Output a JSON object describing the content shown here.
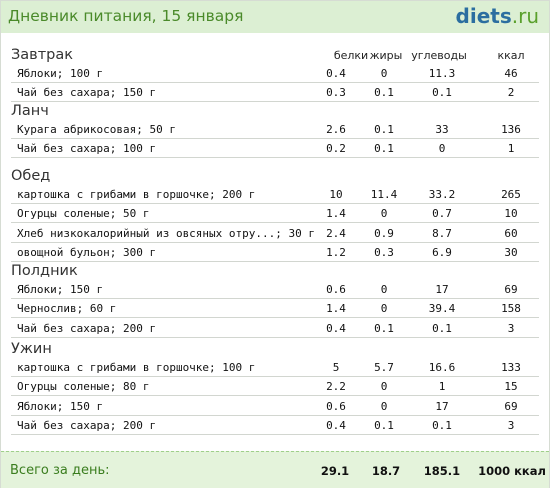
{
  "header": {
    "title": "Дневник питания, 15 января",
    "logo_main": "diets",
    "logo_tld": ".ru"
  },
  "columns": {
    "protein": "белки",
    "fat": "жиры",
    "carbs": "углеводы",
    "kcal": "ккал"
  },
  "meals": [
    {
      "title": "Завтрак",
      "items": [
        {
          "name": "Яблоки; 100 г",
          "protein": "0.4",
          "fat": "0",
          "carbs": "11.3",
          "kcal": "46"
        },
        {
          "name": "Чай без сахара; 150 г",
          "protein": "0.3",
          "fat": "0.1",
          "carbs": "0.1",
          "kcal": "2"
        }
      ]
    },
    {
      "title": "Ланч",
      "items": [
        {
          "name": "Курага абрикосовая; 50 г",
          "protein": "2.6",
          "fat": "0.1",
          "carbs": "33",
          "kcal": "136"
        },
        {
          "name": "Чай без сахара; 100 г",
          "protein": "0.2",
          "fat": "0.1",
          "carbs": "0",
          "kcal": "1"
        }
      ]
    },
    {
      "title": "Обед",
      "items": [
        {
          "name": "картошка с грибами в горшочке; 200 г",
          "protein": "10",
          "fat": "11.4",
          "carbs": "33.2",
          "kcal": "265"
        },
        {
          "name": "Огурцы соленые; 50 г",
          "protein": "1.4",
          "fat": "0",
          "carbs": "0.7",
          "kcal": "10"
        },
        {
          "name": "Хлеб низкокалорийный из овсяных отру...; 30 г",
          "protein": "2.4",
          "fat": "0.9",
          "carbs": "8.7",
          "kcal": "60"
        },
        {
          "name": "овощной бульон; 300 г",
          "protein": "1.2",
          "fat": "0.3",
          "carbs": "6.9",
          "kcal": "30"
        }
      ]
    },
    {
      "title": "Полдник",
      "items": [
        {
          "name": "Яблоки; 150 г",
          "protein": "0.6",
          "fat": "0",
          "carbs": "17",
          "kcal": "69"
        },
        {
          "name": "Чернослив; 60 г",
          "protein": "1.4",
          "fat": "0",
          "carbs": "39.4",
          "kcal": "158"
        },
        {
          "name": "Чай без сахара; 200 г",
          "protein": "0.4",
          "fat": "0.1",
          "carbs": "0.1",
          "kcal": "3"
        }
      ]
    },
    {
      "title": "Ужин",
      "items": [
        {
          "name": "картошка с грибами в горшочке; 100 г",
          "protein": "5",
          "fat": "5.7",
          "carbs": "16.6",
          "kcal": "133"
        },
        {
          "name": "Огурцы соленые; 80 г",
          "protein": "2.2",
          "fat": "0",
          "carbs": "1",
          "kcal": "15"
        },
        {
          "name": "Яблоки; 150 г",
          "protein": "0.6",
          "fat": "0",
          "carbs": "17",
          "kcal": "69"
        },
        {
          "name": "Чай без сахара; 200 г",
          "protein": "0.4",
          "fat": "0.1",
          "carbs": "0.1",
          "kcal": "3"
        }
      ]
    }
  ],
  "totals": {
    "label": "Всего за день:",
    "protein": "29.1",
    "fat": "18.7",
    "carbs": "185.1",
    "kcal": "1000 ккал"
  }
}
